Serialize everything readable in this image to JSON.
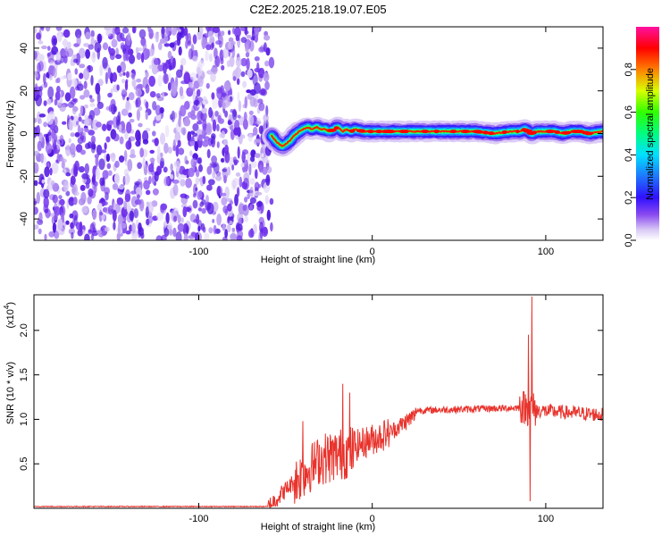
{
  "title": "C2E2.2025.218.19.07.E05",
  "chart_data": [
    {
      "type": "heatmap",
      "xlabel": "Height of straight line (km)",
      "ylabel": "Frequency (Hz)",
      "xlim": [
        -195,
        133
      ],
      "ylim": [
        -50,
        50
      ],
      "xticks": [
        -100,
        0,
        100
      ],
      "yticks": [
        -40,
        -20,
        0,
        20,
        40
      ],
      "noise_region_x": [
        -195,
        -58
      ],
      "signal_trace": {
        "x": [
          -58,
          -55,
          -52,
          -50,
          -47,
          -45,
          -42,
          -40,
          -37,
          -35,
          -32,
          -30,
          -27,
          -25,
          -22,
          -20,
          -17,
          -15,
          -12,
          -10,
          -5,
          0,
          10,
          20,
          30,
          40,
          50,
          60,
          70,
          80,
          85,
          88,
          90,
          92,
          95,
          100,
          105,
          110,
          115,
          120,
          125,
          133
        ],
        "y": [
          -1,
          -4,
          -6,
          -5,
          -3,
          -1,
          1,
          2,
          3,
          2,
          3,
          2,
          2,
          1,
          2,
          3,
          1,
          2,
          1,
          2,
          1,
          1,
          1,
          1,
          1,
          1,
          1,
          1,
          0,
          1,
          1,
          2,
          1,
          0,
          1,
          1,
          1,
          0,
          1,
          1,
          0,
          1
        ]
      },
      "colorbar": {
        "label": "Normalized spectral amplitude",
        "range": [
          0,
          1
        ],
        "ticks": [
          0.0,
          0.2,
          0.4,
          0.6,
          0.8
        ]
      }
    },
    {
      "type": "line",
      "xlabel": "Height of straight line (km)",
      "ylabel": "SNR (10 * v/v)",
      "yscale_note": "(x10",
      "yscale_exp": "4",
      "close_paren": ")",
      "xlim": [
        -195,
        133
      ],
      "ylim": [
        0,
        2.4
      ],
      "xticks": [
        -100,
        0,
        100
      ],
      "yticks": [
        0.5,
        1.0,
        1.5,
        2.0
      ],
      "color": "#e8332c",
      "segments": [
        {
          "x": [
            -195,
            -60
          ],
          "y": [
            0.02,
            0.02
          ],
          "noise": 0.005
        },
        {
          "x": [
            -60,
            -45
          ],
          "y": [
            0.02,
            0.3
          ],
          "noise": 0.1
        },
        {
          "x": [
            -45,
            -30
          ],
          "y": [
            0.3,
            0.55
          ],
          "noise": 0.28
        },
        {
          "x": [
            -30,
            -10
          ],
          "y": [
            0.55,
            0.65
          ],
          "noise": 0.3
        },
        {
          "x": [
            -10,
            10
          ],
          "y": [
            0.7,
            0.85
          ],
          "noise": 0.18
        },
        {
          "x": [
            10,
            25
          ],
          "y": [
            0.85,
            1.05
          ],
          "noise": 0.1
        },
        {
          "x": [
            25,
            85
          ],
          "y": [
            1.1,
            1.13
          ],
          "noise": 0.04
        },
        {
          "x": [
            85,
            95
          ],
          "y": [
            1.15,
            1.1
          ],
          "noise": 0.2
        },
        {
          "x": [
            95,
            133
          ],
          "y": [
            1.1,
            1.05
          ],
          "noise": 0.08
        }
      ],
      "spikes": [
        {
          "x": -17,
          "y": 1.4
        },
        {
          "x": -13,
          "y": 1.3
        },
        {
          "x": -40,
          "y": 0.98
        },
        {
          "x": 90,
          "y": 1.95
        },
        {
          "x": 92,
          "y": 2.38
        },
        {
          "x": 91,
          "y": 0.08
        }
      ]
    }
  ]
}
